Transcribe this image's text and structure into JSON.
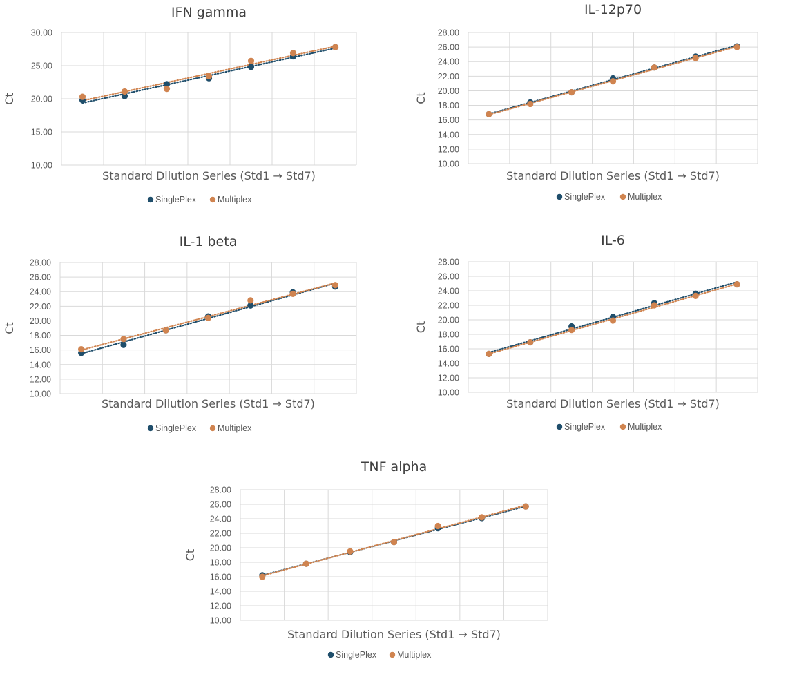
{
  "colors": {
    "singleplex": "#1f4e6b",
    "multiplex": "#d08450"
  },
  "chart_data": [
    {
      "type": "scatter",
      "title": "IFN gamma",
      "xlabel": "Standard Dilution Series (Std1 → Std7)",
      "ylabel": "Ct",
      "x": [
        1,
        2,
        3,
        4,
        5,
        6,
        7
      ],
      "ylim": [
        10,
        30
      ],
      "yticks": [
        "10.00",
        "15.00",
        "20.00",
        "25.00",
        "30.00"
      ],
      "grid": true,
      "trendline": "linear-dotted",
      "legend_position": "bottom",
      "series": [
        {
          "name": "SinglePlex",
          "values": [
            19.8,
            20.4,
            22.2,
            23.1,
            24.8,
            26.4,
            27.8
          ]
        },
        {
          "name": "Multiplex",
          "values": [
            20.3,
            21.1,
            21.5,
            23.4,
            25.7,
            26.9,
            27.8
          ]
        }
      ]
    },
    {
      "type": "scatter",
      "title": "IL-12p70",
      "xlabel": "Standard Dilution Series (Std1 → Std7)",
      "ylabel": "Ct",
      "x": [
        1,
        2,
        3,
        4,
        5,
        6,
        7
      ],
      "ylim": [
        10,
        28
      ],
      "yticks": [
        "10.00",
        "12.00",
        "14.00",
        "16.00",
        "18.00",
        "20.00",
        "22.00",
        "24.00",
        "26.00",
        "28.00"
      ],
      "grid": true,
      "trendline": "linear-dotted",
      "legend_position": "bottom",
      "series": [
        {
          "name": "SinglePlex",
          "values": [
            16.8,
            18.4,
            19.8,
            21.7,
            23.2,
            24.7,
            26.1
          ]
        },
        {
          "name": "Multiplex",
          "values": [
            16.8,
            18.2,
            19.8,
            21.3,
            23.2,
            24.5,
            26.0
          ]
        }
      ]
    },
    {
      "type": "scatter",
      "title": "IL-1 beta",
      "xlabel": "Standard Dilution Series (Std1 → Std7)",
      "ylabel": "Ct",
      "x": [
        1,
        2,
        3,
        4,
        5,
        6,
        7
      ],
      "ylim": [
        10,
        28
      ],
      "yticks": [
        "10.00",
        "12.00",
        "14.00",
        "16.00",
        "18.00",
        "20.00",
        "22.00",
        "24.00",
        "26.00",
        "28.00"
      ],
      "grid": true,
      "trendline": "linear-dotted",
      "legend_position": "bottom",
      "series": [
        {
          "name": "SinglePlex",
          "values": [
            15.6,
            16.7,
            18.7,
            20.6,
            22.1,
            23.9,
            24.7
          ]
        },
        {
          "name": "Multiplex",
          "values": [
            16.1,
            17.5,
            18.7,
            20.4,
            22.8,
            23.7,
            24.9
          ]
        }
      ]
    },
    {
      "type": "scatter",
      "title": "IL-6",
      "xlabel": "Standard Dilution Series (Std1 → Std7)",
      "ylabel": "Ct",
      "x": [
        1,
        2,
        3,
        4,
        5,
        6,
        7
      ],
      "ylim": [
        10,
        28
      ],
      "yticks": [
        "10.00",
        "12.00",
        "14.00",
        "16.00",
        "18.00",
        "20.00",
        "22.00",
        "24.00",
        "26.00",
        "28.00"
      ],
      "grid": true,
      "trendline": "linear-dotted",
      "legend_position": "bottom",
      "series": [
        {
          "name": "SinglePlex",
          "values": [
            15.3,
            16.9,
            19.1,
            20.4,
            22.3,
            23.6,
            24.9
          ]
        },
        {
          "name": "Multiplex",
          "values": [
            15.3,
            16.9,
            18.6,
            19.9,
            22.0,
            23.3,
            24.9
          ]
        }
      ]
    },
    {
      "type": "scatter",
      "title": "TNF alpha",
      "xlabel": "Standard Dilution Series (Std1 → Std7)",
      "ylabel": "Ct",
      "x": [
        1,
        2,
        3,
        4,
        5,
        6,
        7
      ],
      "ylim": [
        10,
        28
      ],
      "yticks": [
        "10.00",
        "12.00",
        "14.00",
        "16.00",
        "18.00",
        "20.00",
        "22.00",
        "24.00",
        "26.00",
        "28.00"
      ],
      "grid": true,
      "trendline": "linear-dotted",
      "legend_position": "bottom",
      "series": [
        {
          "name": "SinglePlex",
          "values": [
            16.2,
            17.8,
            19.4,
            20.8,
            22.7,
            24.1,
            25.7
          ]
        },
        {
          "name": "Multiplex",
          "values": [
            16.0,
            17.8,
            19.5,
            20.8,
            23.0,
            24.2,
            25.7
          ]
        }
      ]
    }
  ]
}
